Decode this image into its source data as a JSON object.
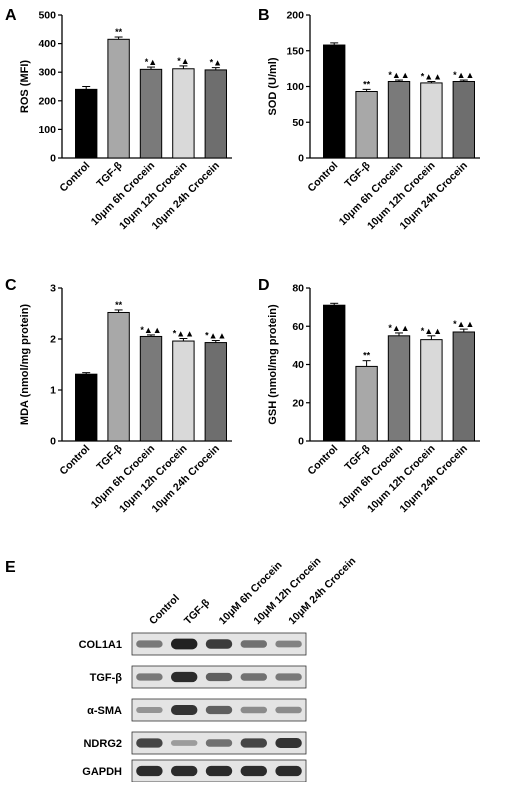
{
  "chart_data": [
    {
      "panel": "A",
      "type": "bar",
      "ylabel": "ROS (MFI)",
      "ylim": [
        0,
        500
      ],
      "yticks": [
        0,
        100,
        200,
        300,
        400,
        500
      ],
      "categories": [
        "Control",
        "TGF-β",
        "10μm 6h Crocein",
        "10μm 12h Crocein",
        "10μm 24h Crocein"
      ],
      "values": [
        240,
        415,
        310,
        312,
        308
      ],
      "errors": [
        10,
        8,
        8,
        10,
        8
      ],
      "annotations": [
        "",
        "**",
        "*▲",
        "*▲",
        "*▲"
      ],
      "colors": [
        "#000000",
        "#a8a8a8",
        "#7a7a7a",
        "#d9d9d9",
        "#6e6e6e"
      ]
    },
    {
      "panel": "B",
      "type": "bar",
      "ylabel": "SOD (U/ml)",
      "ylim": [
        0,
        200
      ],
      "yticks": [
        0,
        50,
        100,
        150,
        200
      ],
      "categories": [
        "Control",
        "TGF-β",
        "10μm 6h Crocein",
        "10μm 12h Crocein",
        "10μm 24h Crocein"
      ],
      "values": [
        158,
        93,
        107,
        105,
        107
      ],
      "errors": [
        3,
        3,
        2,
        2,
        2
      ],
      "annotations": [
        "",
        "**",
        "*▲▲",
        "*▲▲",
        "*▲▲"
      ],
      "colors": [
        "#000000",
        "#a8a8a8",
        "#7a7a7a",
        "#d9d9d9",
        "#6e6e6e"
      ]
    },
    {
      "panel": "C",
      "type": "bar",
      "ylabel": "MDA (nmol/mg protein)",
      "ylim": [
        0,
        3
      ],
      "yticks": [
        0,
        1,
        2,
        3
      ],
      "categories": [
        "Control",
        "TGF-β",
        "10μm 6h Crocein",
        "10μm 12h Crocein",
        "10μm 24h Crocein"
      ],
      "values": [
        1.31,
        2.52,
        2.05,
        1.96,
        1.93
      ],
      "errors": [
        0.03,
        0.05,
        0.03,
        0.05,
        0.04
      ],
      "annotations": [
        "",
        "**",
        "*▲▲",
        "*▲▲",
        "*▲▲"
      ],
      "colors": [
        "#000000",
        "#a8a8a8",
        "#7a7a7a",
        "#d9d9d9",
        "#6e6e6e"
      ]
    },
    {
      "panel": "D",
      "type": "bar",
      "ylabel": "GSH (nmol/mg protein)",
      "ylim": [
        0,
        80
      ],
      "yticks": [
        0,
        20,
        40,
        60,
        80
      ],
      "categories": [
        "Control",
        "TGF-β",
        "10μm 6h Crocein",
        "10μm 12h Crocein",
        "10μm 24h Crocein"
      ],
      "values": [
        71,
        39,
        55,
        53,
        57
      ],
      "errors": [
        1,
        3,
        1.5,
        2,
        1.5
      ],
      "annotations": [
        "",
        "**",
        "*▲▲",
        "*▲▲",
        "*▲▲"
      ],
      "colors": [
        "#000000",
        "#a8a8a8",
        "#7a7a7a",
        "#d9d9d9",
        "#6e6e6e"
      ]
    }
  ],
  "western_blot": {
    "panel": "E",
    "columns": [
      "Control",
      "TGF-β",
      "10μM 6h Crocein",
      "10μM 12h Crocein",
      "10μM 24h Crocein"
    ],
    "rows": [
      {
        "label": "COL1A1",
        "intensity": [
          0.45,
          0.95,
          0.8,
          0.5,
          0.4
        ]
      },
      {
        "label": "TGF-β",
        "intensity": [
          0.45,
          0.9,
          0.6,
          0.5,
          0.45
        ]
      },
      {
        "label": "α-SMA",
        "intensity": [
          0.3,
          0.85,
          0.6,
          0.35,
          0.35
        ]
      },
      {
        "label": "NDRG2",
        "intensity": [
          0.75,
          0.25,
          0.5,
          0.75,
          0.85
        ]
      },
      {
        "label": "GAPDH",
        "intensity": [
          0.9,
          0.9,
          0.9,
          0.9,
          0.9
        ]
      }
    ]
  }
}
